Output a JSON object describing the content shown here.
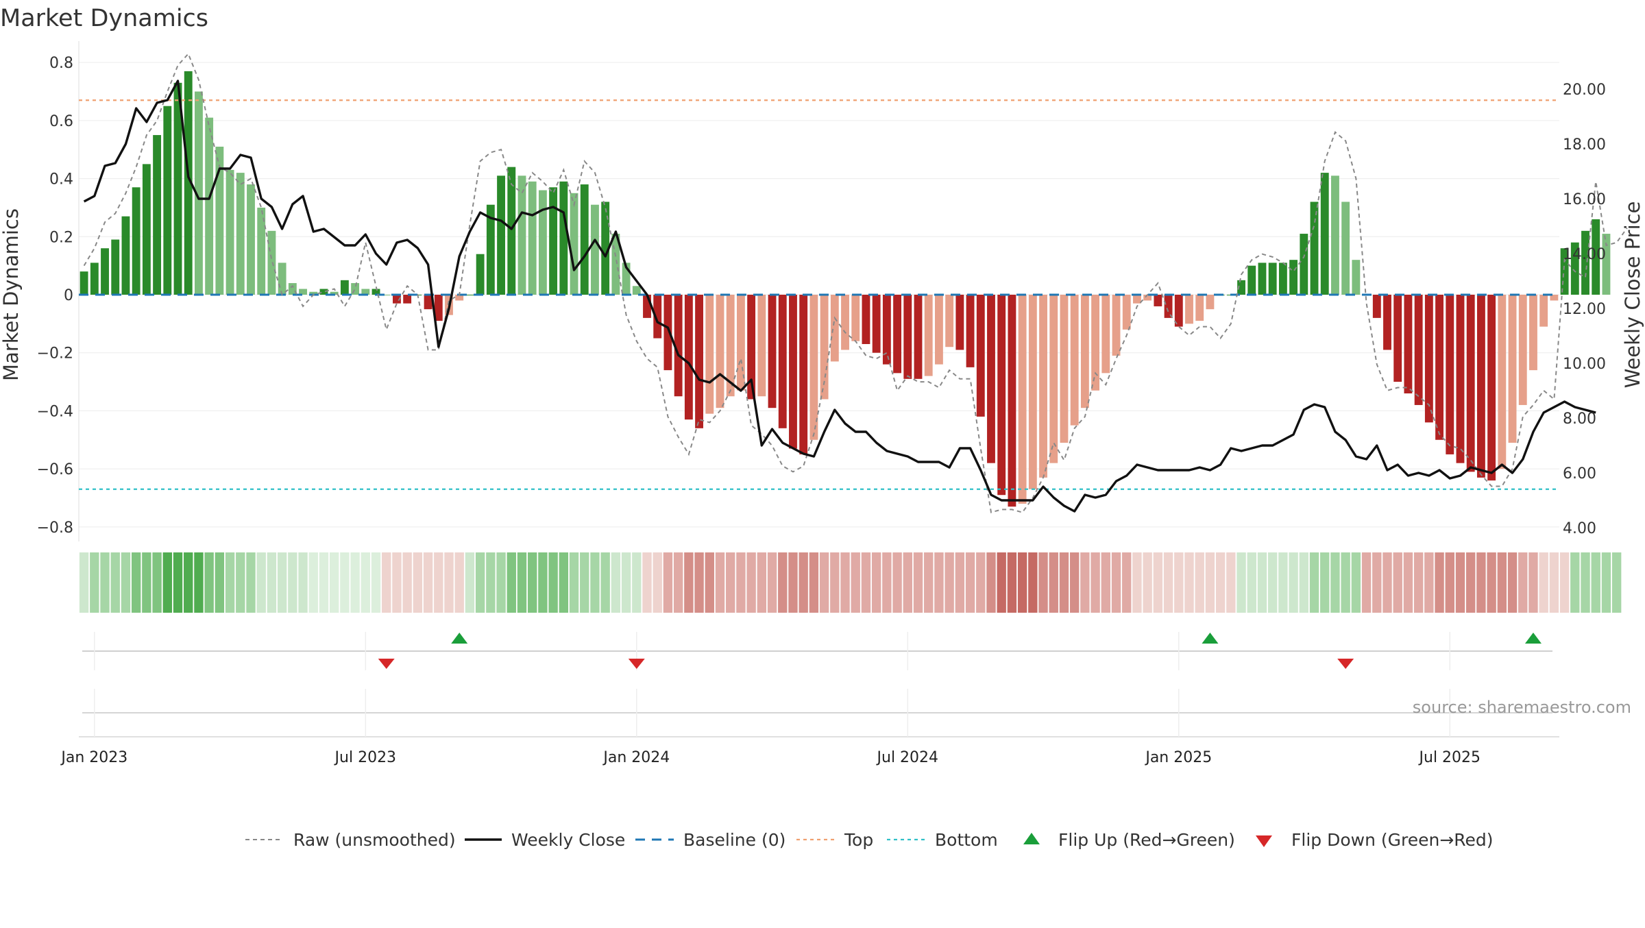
{
  "title": "Market Dynamics",
  "source": "source: sharemaestro.com",
  "colors": {
    "green_strong": "#2a8a2a",
    "green_light": "#7dbd7d",
    "red_strong": "#b22222",
    "red_light": "#e6a08a",
    "top_line": "#f0a070",
    "bottom_line": "#30c0c8",
    "baseline": "#1f77b4",
    "close": "#111111",
    "raw": "#888888",
    "flip_up": "#1a9e3a",
    "flip_down": "#d62728"
  },
  "chart_data": {
    "type": "bar",
    "ylabel_left": "Market Dynamics",
    "ylabel_right": "Weekly Close Price",
    "ylim_left": [
      -0.85,
      0.85
    ],
    "ylim_right": [
      3.5,
      21.5
    ],
    "left_ticks": [
      "0.8",
      "0.6",
      "0.4",
      "0.2",
      "0",
      "−0.2",
      "−0.4",
      "−0.6",
      "−0.8"
    ],
    "right_ticks": [
      "20.00",
      "18.00",
      "16.00",
      "14.00",
      "12.00",
      "10.00",
      "8.00",
      "6.00",
      "4.00"
    ],
    "x_ticks": [
      "Jan 2023",
      "Jul 2023",
      "Jan 2024",
      "Jul 2024",
      "Jan 2025",
      "Jul 2025"
    ],
    "x_tick_weeks": [
      0,
      26,
      52,
      78,
      104,
      130
    ],
    "start_offset_weeks": -1,
    "top_level": 0.67,
    "bottom_level": -0.67,
    "baseline": 0,
    "weeks": 142,
    "series": [
      {
        "name": "Market Dynamics",
        "values": [
          0.08,
          0.11,
          0.16,
          0.19,
          0.27,
          0.37,
          0.45,
          0.55,
          0.65,
          0.73,
          0.77,
          0.7,
          0.61,
          0.51,
          0.43,
          0.42,
          0.38,
          0.3,
          0.22,
          0.11,
          0.04,
          0.02,
          0.01,
          0.02,
          0.01,
          0.05,
          0.04,
          0.02,
          0.02,
          0.0,
          -0.03,
          -0.03,
          0.0,
          -0.05,
          -0.09,
          -0.07,
          -0.02,
          0.0,
          0.14,
          0.31,
          0.41,
          0.44,
          0.41,
          0.39,
          0.36,
          0.37,
          0.39,
          0.35,
          0.38,
          0.31,
          0.32,
          0.21,
          0.11,
          0.03,
          -0.08,
          -0.15,
          -0.26,
          -0.35,
          -0.43,
          -0.46,
          -0.41,
          -0.39,
          -0.35,
          -0.33,
          -0.36,
          -0.35,
          -0.39,
          -0.46,
          -0.53,
          -0.55,
          -0.5,
          -0.36,
          -0.23,
          -0.19,
          -0.16,
          -0.17,
          -0.2,
          -0.24,
          -0.27,
          -0.29,
          -0.29,
          -0.28,
          -0.24,
          -0.18,
          -0.19,
          -0.25,
          -0.42,
          -0.58,
          -0.69,
          -0.73,
          -0.72,
          -0.67,
          -0.63,
          -0.58,
          -0.51,
          -0.45,
          -0.39,
          -0.33,
          -0.27,
          -0.21,
          -0.12,
          -0.03,
          -0.02,
          -0.04,
          -0.08,
          -0.11,
          -0.1,
          -0.09,
          -0.05,
          0.0,
          0.0,
          0.05,
          0.1,
          0.11,
          0.11,
          0.11,
          0.12,
          0.21,
          0.32,
          0.42,
          0.41,
          0.32,
          0.12,
          0.0,
          -0.08,
          -0.19,
          -0.3,
          -0.34,
          -0.38,
          -0.44,
          -0.5,
          -0.55,
          -0.58,
          -0.61,
          -0.63,
          -0.64,
          -0.6,
          -0.51,
          -0.38,
          -0.26,
          -0.11,
          -0.02,
          0.16,
          0.18,
          0.22,
          0.26,
          0.21
        ]
      },
      {
        "name": "Raw (unsmoothed)",
        "values": [
          0.1,
          0.16,
          0.25,
          0.28,
          0.35,
          0.44,
          0.55,
          0.6,
          0.7,
          0.79,
          0.83,
          0.74,
          0.58,
          0.44,
          0.42,
          0.38,
          0.4,
          0.3,
          0.12,
          0.0,
          0.03,
          -0.04,
          0.0,
          0.01,
          0.02,
          -0.04,
          0.02,
          0.18,
          0.03,
          -0.12,
          -0.03,
          0.03,
          0.0,
          -0.19,
          -0.19,
          -0.02,
          0.0,
          0.24,
          0.46,
          0.49,
          0.5,
          0.38,
          0.35,
          0.42,
          0.39,
          0.35,
          0.43,
          0.31,
          0.46,
          0.42,
          0.3,
          0.13,
          -0.07,
          -0.16,
          -0.22,
          -0.25,
          -0.42,
          -0.49,
          -0.55,
          -0.43,
          -0.44,
          -0.4,
          -0.33,
          -0.22,
          -0.45,
          -0.48,
          -0.52,
          -0.59,
          -0.61,
          -0.59,
          -0.48,
          -0.3,
          -0.08,
          -0.13,
          -0.16,
          -0.21,
          -0.22,
          -0.2,
          -0.33,
          -0.28,
          -0.3,
          -0.3,
          -0.32,
          -0.26,
          -0.29,
          -0.29,
          -0.53,
          -0.75,
          -0.74,
          -0.74,
          -0.75,
          -0.7,
          -0.63,
          -0.51,
          -0.57,
          -0.46,
          -0.42,
          -0.27,
          -0.31,
          -0.22,
          -0.14,
          -0.04,
          0.0,
          0.04,
          -0.06,
          -0.11,
          -0.14,
          -0.11,
          -0.11,
          -0.15,
          -0.1,
          0.07,
          0.12,
          0.14,
          0.13,
          0.11,
          0.08,
          0.13,
          0.24,
          0.46,
          0.56,
          0.53,
          0.4,
          -0.03,
          -0.24,
          -0.33,
          -0.32,
          -0.32,
          -0.35,
          -0.38,
          -0.48,
          -0.52,
          -0.53,
          -0.57,
          -0.62,
          -0.66,
          -0.66,
          -0.6,
          -0.42,
          -0.38,
          -0.33,
          -0.36,
          0.12,
          0.08,
          0.06,
          0.39,
          0.17,
          0.18,
          0.23
        ]
      },
      {
        "name": "Weekly Close",
        "values": [
          15.9,
          16.1,
          17.2,
          17.3,
          18.0,
          19.3,
          18.8,
          19.5,
          19.6,
          20.3,
          16.8,
          16.0,
          16.0,
          17.1,
          17.1,
          17.6,
          17.5,
          16.0,
          15.7,
          14.9,
          15.8,
          16.1,
          14.8,
          14.9,
          14.6,
          14.3,
          14.3,
          14.7,
          14.0,
          13.6,
          14.4,
          14.5,
          14.2,
          13.6,
          10.6,
          12.0,
          13.9,
          14.8,
          15.5,
          15.3,
          15.2,
          14.9,
          15.5,
          15.4,
          15.6,
          15.7,
          15.5,
          13.4,
          13.9,
          14.5,
          13.9,
          14.8,
          13.5,
          13.0,
          12.5,
          11.5,
          11.3,
          10.3,
          10.0,
          9.4,
          9.3,
          9.6,
          9.3,
          9.0,
          9.4,
          7.0,
          7.6,
          7.1,
          6.9,
          6.7,
          6.6,
          7.5,
          8.3,
          7.8,
          7.5,
          7.5,
          7.1,
          6.8,
          6.7,
          6.6,
          6.4,
          6.4,
          6.4,
          6.2,
          6.9,
          6.9,
          6.1,
          5.2,
          5.0,
          5.0,
          5.0,
          5.0,
          5.5,
          5.1,
          4.8,
          4.6,
          5.2,
          5.1,
          5.2,
          5.7,
          5.9,
          6.3,
          6.2,
          6.1,
          6.1,
          6.1,
          6.1,
          6.2,
          6.1,
          6.3,
          6.9,
          6.8,
          6.9,
          7.0,
          7.0,
          7.2,
          7.4,
          8.3,
          8.5,
          8.4,
          7.5,
          7.2,
          6.6,
          6.5,
          7.0,
          6.1,
          6.3,
          5.9,
          6.0,
          5.9,
          6.1,
          5.8,
          5.9,
          6.2,
          6.1,
          6.0,
          6.3,
          6.0,
          6.5,
          7.5,
          8.2,
          8.4,
          8.6,
          8.4,
          8.3,
          8.2
        ]
      }
    ],
    "signal_strip": [
      1,
      2,
      2,
      2,
      2,
      3,
      3,
      3,
      4,
      4,
      4,
      4,
      3,
      3,
      2,
      2,
      2,
      1,
      1,
      1,
      1,
      1,
      0,
      0,
      0,
      0,
      0,
      0,
      0,
      -1,
      -1,
      -1,
      -1,
      -1,
      -1,
      -1,
      -1,
      1,
      2,
      2,
      2,
      3,
      3,
      3,
      3,
      3,
      3,
      2,
      2,
      2,
      2,
      1,
      1,
      1,
      -1,
      -1,
      -2,
      -2,
      -3,
      -3,
      -3,
      -2,
      -2,
      -2,
      -2,
      -2,
      -2,
      -3,
      -3,
      -3,
      -3,
      -2,
      -2,
      -2,
      -2,
      -2,
      -2,
      -2,
      -2,
      -2,
      -2,
      -2,
      -2,
      -2,
      -2,
      -2,
      -2,
      -3,
      -4,
      -4,
      -4,
      -4,
      -3,
      -3,
      -3,
      -3,
      -2,
      -2,
      -2,
      -2,
      -2,
      -1,
      -1,
      -1,
      -1,
      -1,
      -1,
      -1,
      -1,
      -1,
      -1,
      1,
      1,
      1,
      1,
      1,
      1,
      1,
      2,
      2,
      2,
      2,
      2,
      -2,
      -2,
      -2,
      -2,
      -2,
      -2,
      -2,
      -3,
      -3,
      -3,
      -3,
      -3,
      -3,
      -3,
      -3,
      -2,
      -2,
      -1,
      -1,
      -1,
      2,
      2,
      2,
      2,
      2
    ],
    "flip_up_weeks": [
      36,
      108,
      139
    ],
    "flip_down_weeks": [
      29,
      53,
      121
    ],
    "legend": [
      "Raw (unsmoothed)",
      "Weekly Close",
      "Baseline (0)",
      "Top",
      "Bottom",
      "Flip Up (Red→Green)",
      "Flip Down (Green→Red)"
    ]
  }
}
